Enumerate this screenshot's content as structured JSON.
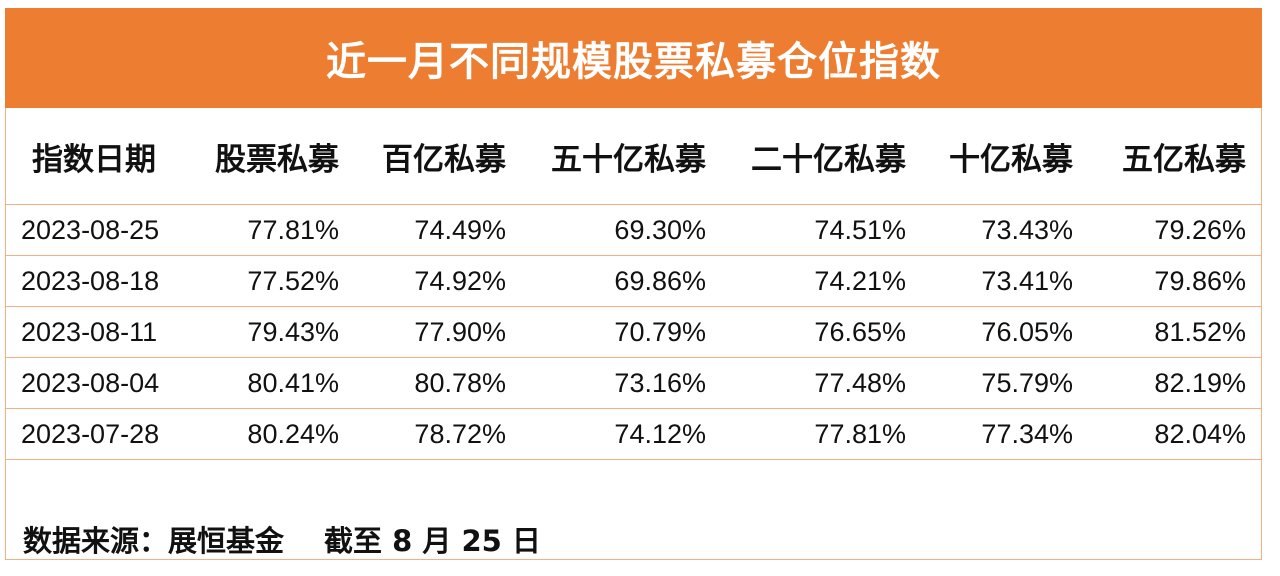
{
  "title": "近一月不同规模股票私募仓位指数",
  "table": {
    "headers": [
      "指数日期",
      "股票私募",
      "百亿私募",
      "五十亿私募",
      "二十亿私募",
      "十亿私募",
      "五亿私募"
    ],
    "rows": [
      [
        "2023-08-25",
        "77.81%",
        "74.49%",
        "69.30%",
        "74.51%",
        "73.43%",
        "79.26%"
      ],
      [
        "2023-08-18",
        "77.52%",
        "74.92%",
        "69.86%",
        "74.21%",
        "73.41%",
        "79.86%"
      ],
      [
        "2023-08-11",
        "79.43%",
        "77.90%",
        "70.79%",
        "76.65%",
        "76.05%",
        "81.52%"
      ],
      [
        "2023-08-04",
        "80.41%",
        "80.78%",
        "73.16%",
        "77.48%",
        "75.79%",
        "82.19%"
      ],
      [
        "2023-07-28",
        "80.24%",
        "78.72%",
        "74.12%",
        "77.81%",
        "77.34%",
        "82.04%"
      ]
    ]
  },
  "footer": {
    "source": "数据来源：展恒基金",
    "as_of": "截至 8 月 25 日"
  },
  "colors": {
    "title_background": "#ed7d31",
    "title_text": "#ffffff",
    "border": "#f3b183"
  }
}
